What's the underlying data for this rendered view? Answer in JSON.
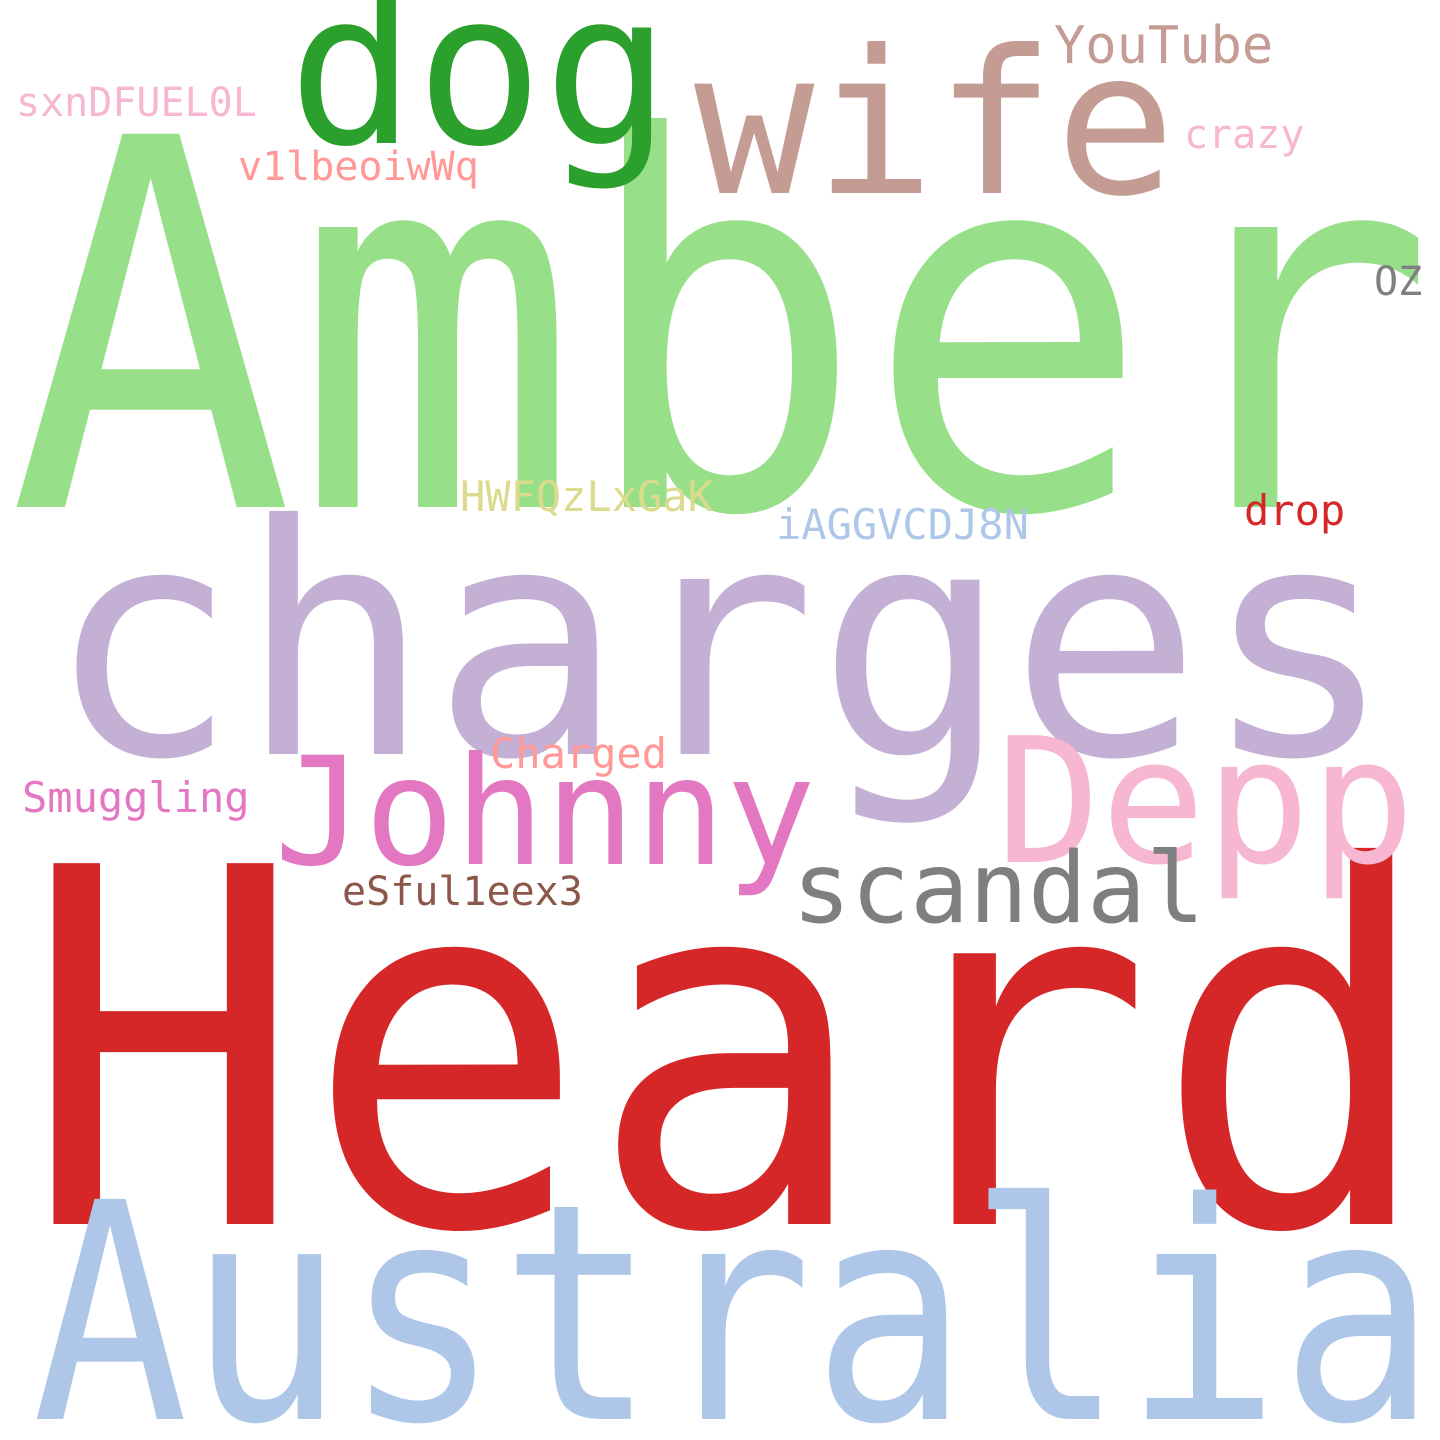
{
  "words": {
    "amber": {
      "text": "Amber",
      "color": "#98df8a"
    },
    "heard": {
      "text": "Heard",
      "color": "#d62728"
    },
    "charges": {
      "text": "charges",
      "color": "#c5b0d5"
    },
    "australia": {
      "text": "Australia",
      "color": "#aec7e8"
    },
    "dog": {
      "text": "dog",
      "color": "#2ca02c"
    },
    "wife": {
      "text": "wife",
      "color": "#c49c94"
    },
    "johnny": {
      "text": "Johnny",
      "color": "#e377c2"
    },
    "depp": {
      "text": "Depp",
      "color": "#f7b6d2"
    },
    "scandal": {
      "text": "scandal",
      "color": "#7f7f7f"
    },
    "youtube": {
      "text": "YouTube",
      "color": "#c49c94"
    },
    "sxn": {
      "text": "sxnDFUEL0L",
      "color": "#f7b6d2"
    },
    "crazy": {
      "text": "crazy",
      "color": "#f7b6d2"
    },
    "v1l": {
      "text": "v1lbeoiwWq",
      "color": "#ff9896"
    },
    "oz": {
      "text": "OZ",
      "color": "#7f7f7f"
    },
    "hwf": {
      "text": "HWFQzLxGaK",
      "color": "#dbdb8d"
    },
    "iagg": {
      "text": "iAGGVCDJ8N",
      "color": "#aec7e8"
    },
    "drop": {
      "text": "drop",
      "color": "#d62728"
    },
    "charged": {
      "text": "Charged",
      "color": "#ff9896"
    },
    "smuggling": {
      "text": "Smuggling",
      "color": "#e377c2"
    },
    "esf": {
      "text": "eSful1eex3",
      "color": "#8c564b"
    }
  }
}
